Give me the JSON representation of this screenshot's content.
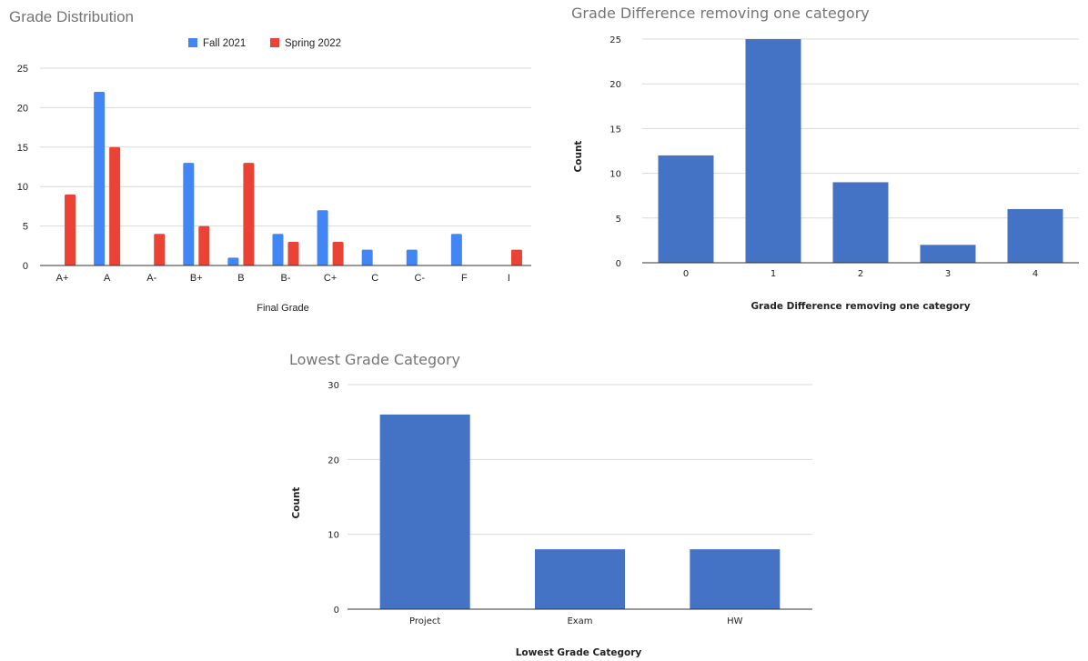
{
  "chart_data": [
    {
      "type": "bar",
      "title": "Grade Distribution",
      "xlabel": "Final Grade",
      "ylabel": "",
      "categories": [
        "A+",
        "A",
        "A-",
        "B+",
        "B",
        "B-",
        "C+",
        "C",
        "C-",
        "F",
        "I"
      ],
      "series": [
        {
          "name": "Fall 2021",
          "color": "#4285f4",
          "values": [
            0,
            22,
            0,
            13,
            1,
            4,
            7,
            2,
            2,
            4,
            0
          ]
        },
        {
          "name": "Spring 2022",
          "color": "#ea4335",
          "values": [
            9,
            15,
            4,
            5,
            13,
            3,
            3,
            0,
            0,
            0,
            2
          ]
        }
      ],
      "ylim": [
        0,
        25
      ],
      "yticks": [
        0,
        5,
        10,
        15,
        20,
        25
      ],
      "grid": true,
      "legend": "top"
    },
    {
      "type": "bar",
      "title": "Grade Difference removing one category",
      "xlabel": "Grade Difference removing one category",
      "ylabel": "Count",
      "categories": [
        "0",
        "1",
        "2",
        "3",
        "4"
      ],
      "values": [
        12,
        25,
        9,
        2,
        6
      ],
      "color": "#4472c4",
      "ylim": [
        0,
        25
      ],
      "yticks": [
        0,
        5,
        10,
        15,
        20,
        25
      ],
      "grid": true
    },
    {
      "type": "bar",
      "title": "Lowest Grade Category",
      "xlabel": "Lowest Grade Category",
      "ylabel": "Count",
      "categories": [
        "Project",
        "Exam",
        "HW"
      ],
      "values": [
        26,
        8,
        8
      ],
      "color": "#4472c4",
      "ylim": [
        0,
        30
      ],
      "yticks": [
        0,
        10,
        20,
        30
      ],
      "grid": true
    }
  ]
}
